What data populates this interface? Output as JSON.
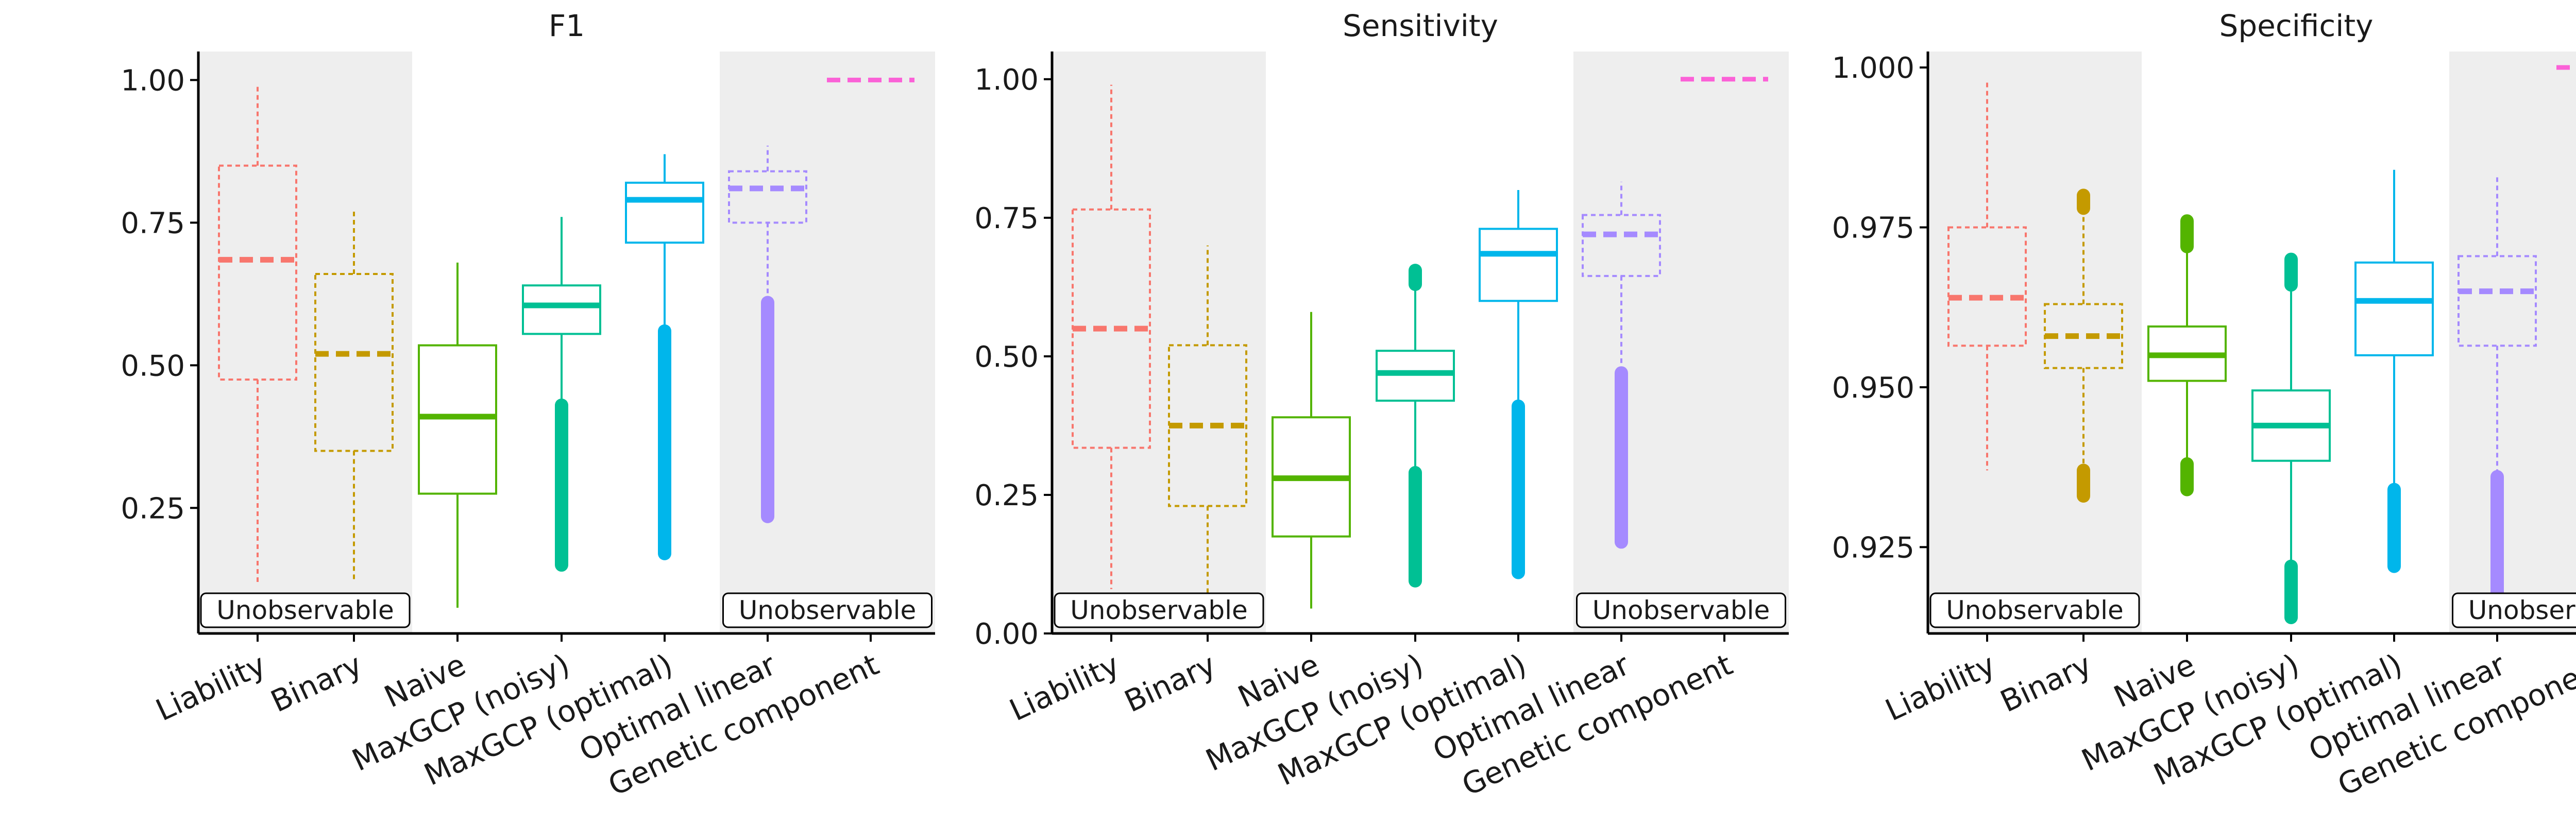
{
  "chart_data": [
    {
      "type": "box",
      "title": "F1",
      "ylim": [
        0.03,
        1.05
      ],
      "yticks": [
        0.25,
        0.5,
        0.75,
        1.0
      ],
      "ytick_labels": [
        "0.25",
        "0.50",
        "0.75",
        "1.00"
      ],
      "categories": [
        "Liability",
        "Binary",
        "Naive",
        "MaxGCP (noisy)",
        "MaxGCP (optimal)",
        "Optimal linear",
        "Genetic component"
      ],
      "unobservable_label": "Unobservable",
      "unobservable_categories": [
        "Liability",
        "Binary",
        "Optimal linear",
        "Genetic component"
      ],
      "grid": false,
      "boxes": [
        {
          "category": "Liability",
          "whisker_low": 0.12,
          "q1": 0.475,
          "median": 0.685,
          "q3": 0.85,
          "whisker_high": 0.99,
          "outliers_low": null,
          "outliers_high": null,
          "dashed": true,
          "color": "#F8766D"
        },
        {
          "category": "Binary",
          "whisker_low": 0.12,
          "q1": 0.35,
          "median": 0.52,
          "q3": 0.66,
          "whisker_high": 0.775,
          "outliers_low": null,
          "outliers_high": null,
          "dashed": true,
          "color": "#C49A00"
        },
        {
          "category": "Naive",
          "whisker_low": 0.075,
          "q1": 0.275,
          "median": 0.41,
          "q3": 0.535,
          "whisker_high": 0.68,
          "outliers_low": null,
          "outliers_high": null,
          "dashed": false,
          "color": "#53B400"
        },
        {
          "category": "MaxGCP (noisy)",
          "whisker_low": 0.43,
          "q1": 0.555,
          "median": 0.605,
          "q3": 0.64,
          "whisker_high": 0.76,
          "outliers_low": [
            0.15,
            0.43
          ],
          "outliers_high": null,
          "dashed": false,
          "color": "#00C094"
        },
        {
          "category": "MaxGCP (optimal)",
          "whisker_low": 0.56,
          "q1": 0.715,
          "median": 0.79,
          "q3": 0.82,
          "whisker_high": 0.87,
          "outliers_low": [
            0.17,
            0.56
          ],
          "outliers_high": null,
          "dashed": false,
          "color": "#00B6EB"
        },
        {
          "category": "Optimal linear",
          "whisker_low": 0.61,
          "q1": 0.75,
          "median": 0.81,
          "q3": 0.84,
          "whisker_high": 0.885,
          "outliers_low": [
            0.235,
            0.61
          ],
          "outliers_high": null,
          "dashed": true,
          "color": "#A58AFF"
        },
        {
          "category": "Genetic component",
          "whisker_low": 1.0,
          "q1": 1.0,
          "median": 1.0,
          "q3": 1.0,
          "whisker_high": 1.0,
          "outliers_low": null,
          "outliers_high": null,
          "dashed": true,
          "color": "#FB61D7"
        }
      ]
    },
    {
      "type": "box",
      "title": "Sensitivity",
      "ylim": [
        0.0,
        1.05
      ],
      "yticks": [
        0.0,
        0.25,
        0.5,
        0.75,
        1.0
      ],
      "ytick_labels": [
        "0.00",
        "0.25",
        "0.50",
        "0.75",
        "1.00"
      ],
      "categories": [
        "Liability",
        "Binary",
        "Naive",
        "MaxGCP (noisy)",
        "MaxGCP (optimal)",
        "Optimal linear",
        "Genetic component"
      ],
      "unobservable_label": "Unobservable",
      "unobservable_categories": [
        "Liability",
        "Binary",
        "Optimal linear",
        "Genetic component"
      ],
      "grid": false,
      "boxes": [
        {
          "category": "Liability",
          "whisker_low": 0.08,
          "q1": 0.335,
          "median": 0.55,
          "q3": 0.765,
          "whisker_high": 0.99,
          "outliers_low": null,
          "outliers_high": null,
          "dashed": true,
          "color": "#F8766D"
        },
        {
          "category": "Binary",
          "whisker_low": 0.05,
          "q1": 0.23,
          "median": 0.375,
          "q3": 0.52,
          "whisker_high": 0.7,
          "outliers_low": null,
          "outliers_high": null,
          "dashed": true,
          "color": "#C49A00"
        },
        {
          "category": "Naive",
          "whisker_low": 0.045,
          "q1": 0.175,
          "median": 0.28,
          "q3": 0.39,
          "whisker_high": 0.58,
          "outliers_low": null,
          "outliers_high": null,
          "dashed": false,
          "color": "#53B400"
        },
        {
          "category": "MaxGCP (noisy)",
          "whisker_low": 0.29,
          "q1": 0.42,
          "median": 0.47,
          "q3": 0.51,
          "whisker_high": 0.625,
          "outliers_low": [
            0.095,
            0.29
          ],
          "outliers_high": [
            0.63,
            0.655
          ],
          "dashed": false,
          "color": "#00C094"
        },
        {
          "category": "MaxGCP (optimal)",
          "whisker_low": 0.41,
          "q1": 0.6,
          "median": 0.685,
          "q3": 0.73,
          "whisker_high": 0.8,
          "outliers_low": [
            0.11,
            0.41
          ],
          "outliers_high": null,
          "dashed": false,
          "color": "#00B6EB"
        },
        {
          "category": "Optimal linear",
          "whisker_low": 0.47,
          "q1": 0.645,
          "median": 0.72,
          "q3": 0.755,
          "whisker_high": 0.815,
          "outliers_low": [
            0.165,
            0.47
          ],
          "outliers_high": null,
          "dashed": true,
          "color": "#A58AFF"
        },
        {
          "category": "Genetic component",
          "whisker_low": 1.0,
          "q1": 1.0,
          "median": 1.0,
          "q3": 1.0,
          "whisker_high": 1.0,
          "outliers_low": null,
          "outliers_high": null,
          "dashed": true,
          "color": "#FB61D7"
        }
      ]
    },
    {
      "type": "box",
      "title": "Specificity",
      "ylim": [
        0.9115,
        1.0025
      ],
      "yticks": [
        0.925,
        0.95,
        0.975,
        1.0
      ],
      "ytick_labels": [
        "0.925",
        "0.950",
        "0.975",
        "1.000"
      ],
      "categories": [
        "Liability",
        "Binary",
        "Naive",
        "MaxGCP (noisy)",
        "MaxGCP (optimal)",
        "Optimal linear",
        "Genetic component"
      ],
      "unobservable_label": "Unobservable",
      "unobservable_categories": [
        "Liability",
        "Binary",
        "Optimal linear",
        "Genetic component"
      ],
      "grid": false,
      "boxes": [
        {
          "category": "Liability",
          "whisker_low": 0.937,
          "q1": 0.9565,
          "median": 0.964,
          "q3": 0.975,
          "whisker_high": 0.998,
          "outliers_low": null,
          "outliers_high": null,
          "dashed": true,
          "color": "#F8766D"
        },
        {
          "category": "Binary",
          "whisker_low": 0.938,
          "q1": 0.953,
          "median": 0.958,
          "q3": 0.963,
          "whisker_high": 0.978,
          "outliers_low": [
            0.933,
            0.937
          ],
          "outliers_high": [
            0.978,
            0.98
          ],
          "dashed": true,
          "color": "#C49A00"
        },
        {
          "category": "Naive",
          "whisker_low": 0.938,
          "q1": 0.951,
          "median": 0.955,
          "q3": 0.9595,
          "whisker_high": 0.972,
          "outliers_low": [
            0.934,
            0.938
          ],
          "outliers_high": [
            0.972,
            0.976
          ],
          "dashed": false,
          "color": "#53B400"
        },
        {
          "category": "MaxGCP (noisy)",
          "whisker_low": 0.922,
          "q1": 0.9385,
          "median": 0.944,
          "q3": 0.9495,
          "whisker_high": 0.966,
          "outliers_low": [
            0.914,
            0.922
          ],
          "outliers_high": [
            0.966,
            0.97
          ],
          "dashed": false,
          "color": "#00C094"
        },
        {
          "category": "MaxGCP (optimal)",
          "whisker_low": 0.934,
          "q1": 0.955,
          "median": 0.9635,
          "q3": 0.9695,
          "whisker_high": 0.984,
          "outliers_low": [
            0.922,
            0.934
          ],
          "outliers_high": null,
          "dashed": false,
          "color": "#00B6EB"
        },
        {
          "category": "Optimal linear",
          "whisker_low": 0.936,
          "q1": 0.9565,
          "median": 0.965,
          "q3": 0.9705,
          "whisker_high": 0.983,
          "outliers_low": [
            0.917,
            0.936
          ],
          "outliers_high": null,
          "dashed": true,
          "color": "#A58AFF"
        },
        {
          "category": "Genetic component",
          "whisker_low": 1.0,
          "q1": 1.0,
          "median": 1.0,
          "q3": 1.0,
          "whisker_high": 1.0,
          "outliers_low": null,
          "outliers_high": null,
          "dashed": true,
          "color": "#FB61D7"
        }
      ]
    }
  ]
}
